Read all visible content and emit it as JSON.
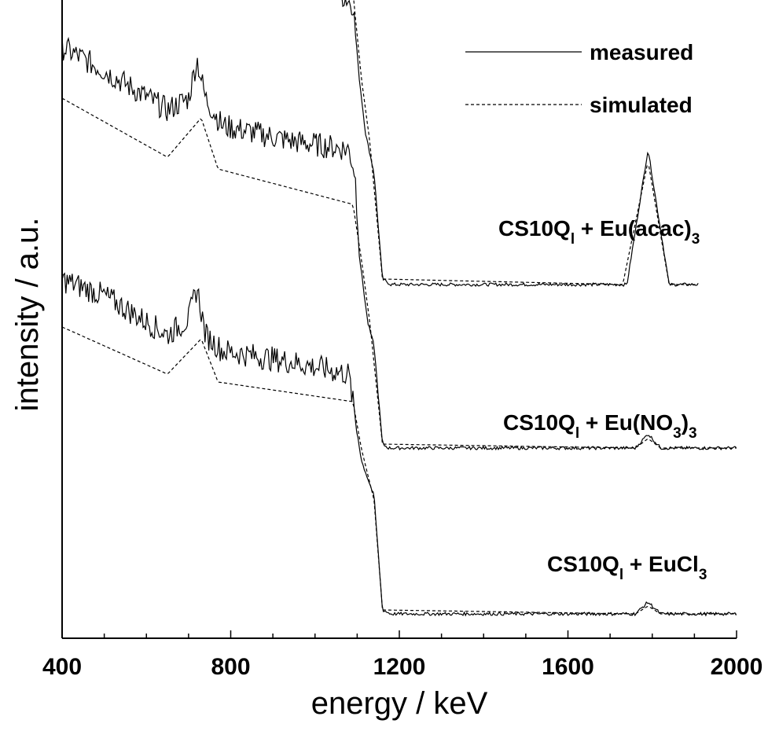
{
  "chart_data": {
    "type": "line",
    "xlabel": "energy / keV",
    "ylabel": "intensity / a.u.",
    "xlim": [
      400,
      2000
    ],
    "x_ticks": [
      "400",
      "800",
      "1200",
      "1600",
      "2000"
    ],
    "y_ticks_labeled": false,
    "grid": false,
    "legend": {
      "placement": "top-right",
      "entries": [
        {
          "name": "measured",
          "style": "solid"
        },
        {
          "name": "simulated",
          "style": "dashed"
        }
      ]
    },
    "series_groups": [
      {
        "label_main": "CS10Q",
        "label_sub1": "l",
        "label_mid": " + Eu(acac)",
        "label_sub2": "3",
        "label_tail": "",
        "x_end": 1910,
        "points": [
          [
            400,
            7.2
          ],
          [
            500,
            6.6
          ],
          [
            650,
            5.5
          ],
          [
            700,
            5.95
          ],
          [
            720,
            6.3
          ],
          [
            745,
            5.6
          ],
          [
            800,
            5.15
          ],
          [
            950,
            4.9
          ],
          [
            1050,
            4.72
          ],
          [
            1090,
            4.55
          ],
          [
            1105,
            3.6
          ],
          [
            1120,
            2.9
          ],
          [
            1140,
            2.4
          ],
          [
            1160,
            1.05
          ],
          [
            1180,
            0.98
          ],
          [
            1740,
            0.98
          ],
          [
            1790,
            2.7
          ],
          [
            1840,
            0.98
          ],
          [
            1910,
            0.98
          ]
        ],
        "sim_points": [
          [
            400,
            6.6
          ],
          [
            650,
            5.6
          ],
          [
            730,
            6.0
          ],
          [
            760,
            5.45
          ],
          [
            1090,
            4.7
          ],
          [
            1110,
            3.6
          ],
          [
            1130,
            2.8
          ],
          [
            1160,
            1.05
          ],
          [
            1730,
            0.98
          ],
          [
            1790,
            2.55
          ],
          [
            1840,
            0.98
          ]
        ]
      },
      {
        "label_main": "CS10Q",
        "label_sub1": "l",
        "label_mid": " + Eu(NO",
        "label_sub2": "3",
        "label_tail": ")",
        "label_sub3": "3",
        "x_end": 2000,
        "points": [
          [
            400,
            5.6
          ],
          [
            500,
            5.3
          ],
          [
            650,
            4.8
          ],
          [
            700,
            4.95
          ],
          [
            720,
            5.45
          ],
          [
            740,
            4.95
          ],
          [
            780,
            4.6
          ],
          [
            950,
            4.4
          ],
          [
            1080,
            4.3
          ],
          [
            1095,
            4.0
          ],
          [
            1105,
            2.95
          ],
          [
            1125,
            2.1
          ],
          [
            1140,
            1.8
          ],
          [
            1160,
            0.55
          ],
          [
            1175,
            0.5
          ],
          [
            1760,
            0.5
          ],
          [
            1790,
            0.68
          ],
          [
            1820,
            0.5
          ],
          [
            2000,
            0.5
          ]
        ],
        "sim_points": [
          [
            400,
            4.95
          ],
          [
            650,
            4.2
          ],
          [
            730,
            4.7
          ],
          [
            770,
            4.05
          ],
          [
            1090,
            3.6
          ],
          [
            1110,
            2.9
          ],
          [
            1130,
            2.1
          ],
          [
            1160,
            0.55
          ],
          [
            1760,
            0.5
          ],
          [
            1790,
            0.62
          ],
          [
            1820,
            0.5
          ],
          [
            2000,
            0.5
          ]
        ]
      },
      {
        "label_main": "CS10Q",
        "label_sub1": "l",
        "label_mid": " + EuCl",
        "label_sub2": "3",
        "label_tail": "",
        "x_end": 2000,
        "points": [
          [
            400,
            4.25
          ],
          [
            500,
            4.05
          ],
          [
            650,
            3.55
          ],
          [
            700,
            3.75
          ],
          [
            720,
            4.15
          ],
          [
            740,
            3.55
          ],
          [
            780,
            3.35
          ],
          [
            950,
            3.2
          ],
          [
            1080,
            3.05
          ],
          [
            1095,
            2.5
          ],
          [
            1110,
            1.95
          ],
          [
            1140,
            1.5
          ],
          [
            1160,
            0.05
          ],
          [
            1180,
            0.0
          ],
          [
            1760,
            0.0
          ],
          [
            1790,
            0.15
          ],
          [
            1820,
            0.0
          ],
          [
            2000,
            0.0
          ]
        ],
        "sim_points": [
          [
            400,
            3.65
          ],
          [
            650,
            3.05
          ],
          [
            730,
            3.5
          ],
          [
            770,
            2.95
          ],
          [
            1090,
            2.7
          ],
          [
            1110,
            2.1
          ],
          [
            1140,
            1.45
          ],
          [
            1160,
            0.05
          ],
          [
            1760,
            0.0
          ],
          [
            1790,
            0.1
          ],
          [
            1820,
            0.0
          ],
          [
            2000,
            0.0
          ]
        ]
      }
    ],
    "colors": {
      "line": "#000000",
      "background": "#ffffff"
    }
  }
}
